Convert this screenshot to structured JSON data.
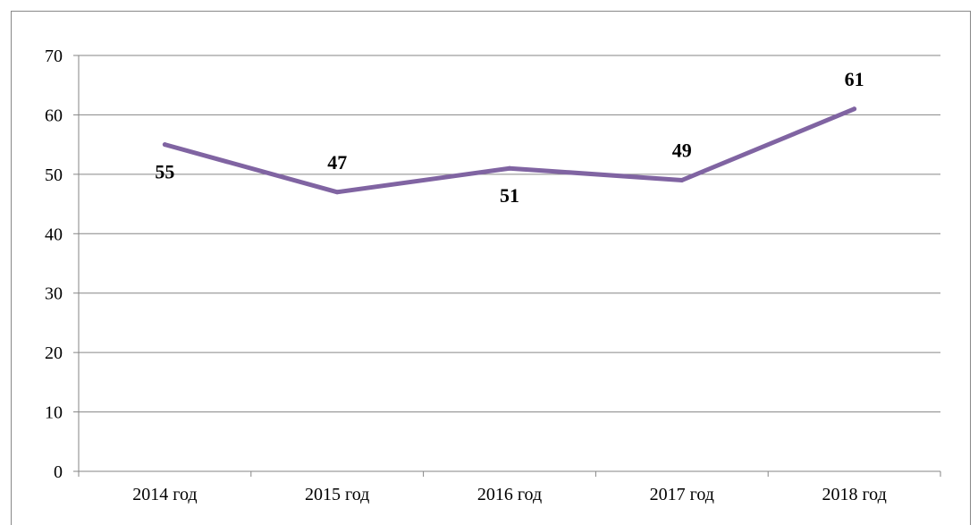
{
  "chart_data": {
    "type": "line",
    "title": "",
    "xlabel": "",
    "ylabel": "",
    "categories": [
      "2014 год",
      "2015 год",
      "2016 год",
      "2017 год",
      "2018 год"
    ],
    "series": [
      {
        "values": [
          55,
          47,
          51,
          49,
          61
        ],
        "color": "#8064A2",
        "data_label_position": [
          "below",
          "above",
          "below",
          "above",
          "above"
        ]
      }
    ],
    "ylim": [
      0,
      70
    ],
    "yticks": [
      0,
      10,
      20,
      30,
      40,
      50,
      60,
      70
    ],
    "grid": true,
    "legend": "none"
  }
}
